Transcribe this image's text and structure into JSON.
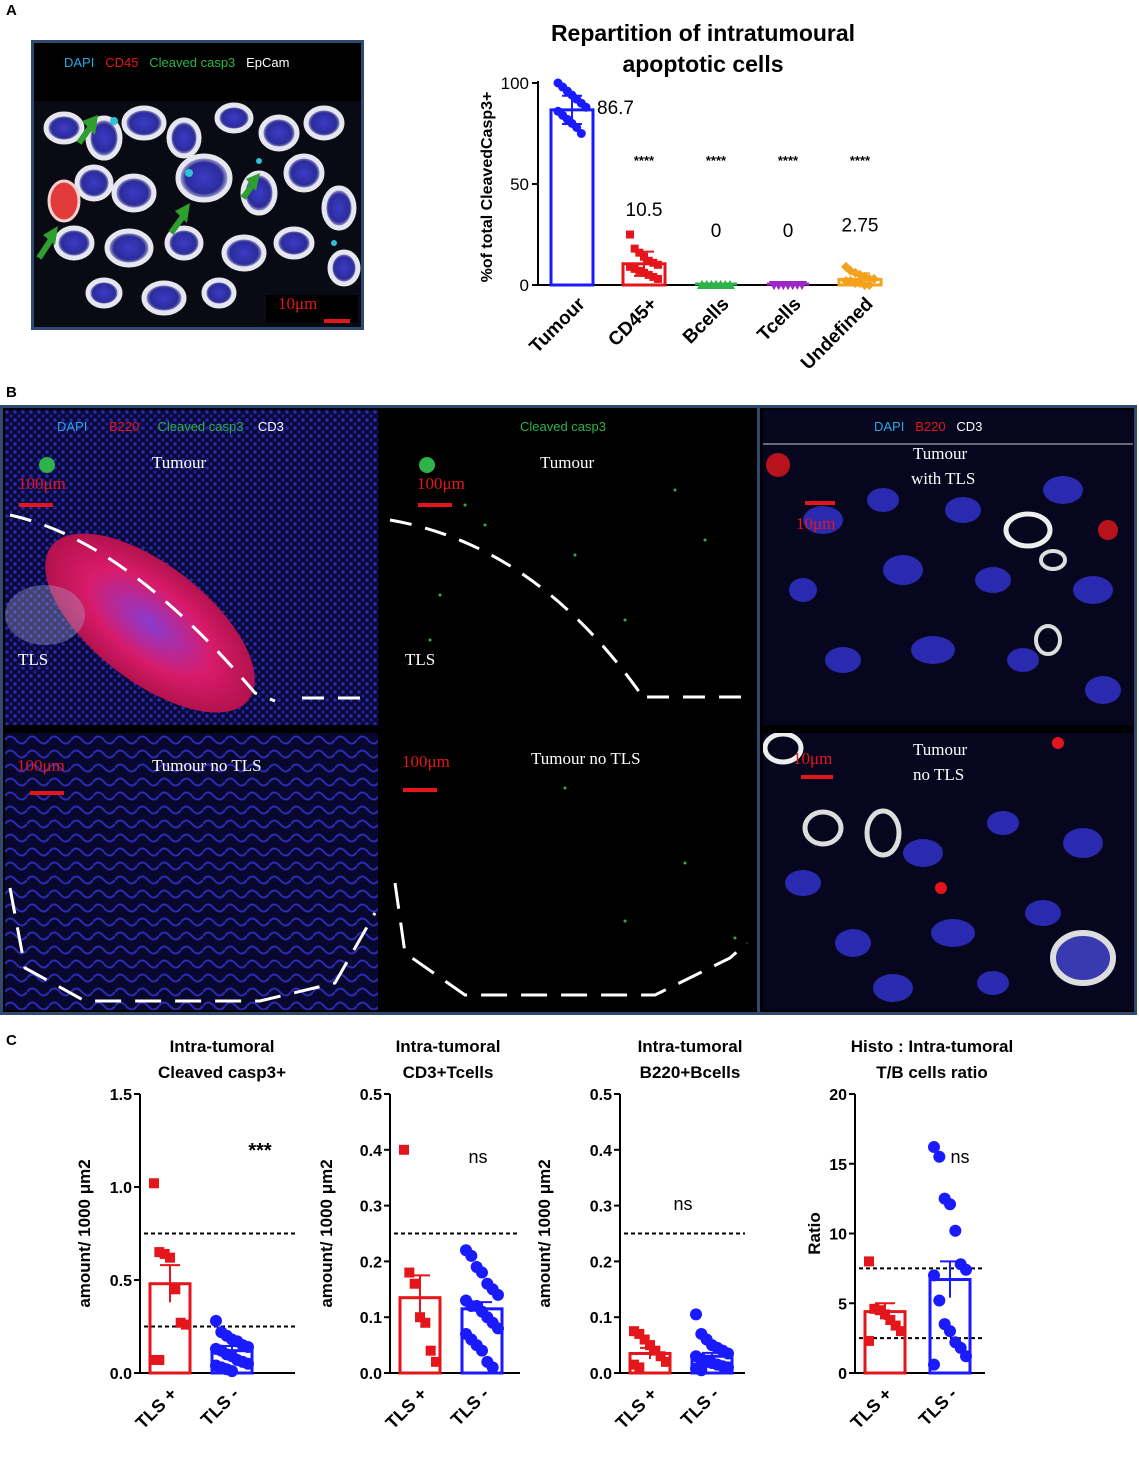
{
  "panel_letters": {
    "a": "A",
    "b": "B",
    "c": "C"
  },
  "colors": {
    "dapi": "#29a9e0",
    "red": "#e5161b",
    "green": "#2db34a",
    "white": "#ffffff",
    "blue": "#1a1aff",
    "purple": "#9b27c7",
    "orange": "#f4a11d",
    "arrow": "#2e9e2e"
  },
  "panel_a": {
    "image": {
      "legend": {
        "dapi": "DAPI",
        "cd45": "CD45",
        "casp3": "Cleaved casp3",
        "epcam": "EpCam"
      },
      "scale": "10μm"
    }
  },
  "panel_b": {
    "img1": {
      "legend": {
        "dapi": "DAPI",
        "b220": "B220",
        "casp3": "Cleaved casp3",
        "cd3": "CD3"
      },
      "scale": "100μm",
      "labels": {
        "top": "Tumour",
        "tls": "TLS"
      }
    },
    "img2": {
      "legend": "Cleaved casp3",
      "scale": "100μm",
      "labels": {
        "top": "Tumour",
        "tls": "TLS"
      }
    },
    "img3": {
      "legend": {
        "dapi": "DAPI",
        "b220": "B220",
        "cd3": "CD3"
      },
      "scale": "10μm",
      "labels": {
        "line1": "Tumour",
        "line2": "with TLS"
      }
    },
    "img4": {
      "scale": "100μm",
      "label": "Tumour no TLS"
    },
    "img5": {
      "scale": "100μm",
      "label": "Tumour no TLS"
    },
    "img6": {
      "scale": "10μm",
      "labels": {
        "line1": "Tumour",
        "line2": "no TLS"
      }
    }
  },
  "chart_data": [
    {
      "id": "A",
      "type": "bar",
      "title": [
        "Repartition of intratumoural",
        "apoptotic cells"
      ],
      "ylabel": "%of total CleavedCasp3+",
      "ylim": [
        0,
        100
      ],
      "yticks": [
        0,
        50,
        100
      ],
      "categories": [
        "Tumour",
        "CD45+",
        "Bcells",
        "Tcells",
        "Undefined"
      ],
      "values": [
        86.7,
        10.5,
        0,
        0,
        2.75
      ],
      "value_labels": [
        "86.7",
        "10.5",
        "0",
        "0",
        "2.75"
      ],
      "significance": [
        "",
        "****",
        "****",
        "****",
        "****"
      ],
      "colors": [
        "#1a1aff",
        "#e5161b",
        "#2db34a",
        "#9b27c7",
        "#f4a11d"
      ],
      "points": [
        [
          100,
          98,
          96,
          94,
          92,
          90,
          88,
          86,
          84,
          82,
          80,
          78,
          75
        ],
        [
          25,
          18,
          16,
          14,
          12,
          11,
          10,
          9,
          8,
          7,
          6,
          5,
          4,
          3
        ],
        [
          0,
          0,
          0,
          0,
          0,
          0,
          0,
          0,
          0,
          0,
          0,
          0
        ],
        [
          0,
          0,
          0,
          0,
          0,
          0,
          0,
          0,
          0,
          0,
          0,
          0
        ],
        [
          9,
          7,
          6,
          5,
          4,
          3,
          3,
          2,
          2,
          1,
          1,
          0,
          0
        ]
      ],
      "errors": [
        7,
        6,
        0,
        0,
        3
      ]
    },
    {
      "id": "C1",
      "type": "bar",
      "title": [
        "Intra-tumoral",
        "Cleaved casp3+"
      ],
      "ylabel": "amount/ 1000 μm2",
      "ylim": [
        0,
        1.5
      ],
      "yticks": [
        "0.0",
        "0.5",
        "1.0",
        "1.5"
      ],
      "categories": [
        "TLS +",
        "TLS -"
      ],
      "values": [
        0.48,
        0.12
      ],
      "errors": [
        0.1,
        0.025
      ],
      "significance": "***",
      "thresholds": [
        0.75,
        0.25
      ],
      "points": [
        [
          1.02,
          0.65,
          0.64,
          0.62,
          0.45,
          0.27,
          0.26,
          0.07,
          0.07
        ],
        [
          0.28,
          0.22,
          0.2,
          0.18,
          0.17,
          0.15,
          0.14,
          0.13,
          0.12,
          0.1,
          0.09,
          0.07,
          0.06,
          0.05,
          0.04,
          0.03,
          0.02,
          0.01
        ]
      ],
      "markers": [
        "square",
        "circle"
      ],
      "colors": [
        "#e5161b",
        "#1a1aff"
      ]
    },
    {
      "id": "C2",
      "type": "bar",
      "title": [
        "Intra-tumoral",
        "CD3+Tcells"
      ],
      "ylabel": "amount/ 1000 μm2",
      "ylim": [
        0,
        0.5
      ],
      "yticks": [
        "0.0",
        "0.1",
        "0.2",
        "0.3",
        "0.4",
        "0.5"
      ],
      "categories": [
        "TLS +",
        "TLS -"
      ],
      "values": [
        0.135,
        0.115
      ],
      "errors": [
        0.04,
        0.012
      ],
      "significance": "ns",
      "thresholds": [
        0.25
      ],
      "points": [
        [
          0.4,
          0.18,
          0.16,
          0.1,
          0.09,
          0.04,
          0.02
        ],
        [
          0.22,
          0.21,
          0.19,
          0.18,
          0.16,
          0.15,
          0.14,
          0.13,
          0.12,
          0.12,
          0.11,
          0.1,
          0.09,
          0.08,
          0.07,
          0.06,
          0.05,
          0.04,
          0.02,
          0.01
        ]
      ],
      "markers": [
        "square",
        "circle"
      ],
      "colors": [
        "#e5161b",
        "#1a1aff"
      ]
    },
    {
      "id": "C3",
      "type": "bar",
      "title": [
        "Intra-tumoral",
        "B220+Bcells"
      ],
      "ylabel": "amount/ 1000 μm2",
      "ylim": [
        0,
        0.5
      ],
      "yticks": [
        "0.0",
        "0.1",
        "0.2",
        "0.3",
        "0.4",
        "0.5"
      ],
      "categories": [
        "TLS +",
        "TLS -"
      ],
      "values": [
        0.035,
        0.03
      ],
      "errors": [
        0.01,
        0.006
      ],
      "significance": "ns",
      "thresholds": [
        0.25
      ],
      "points": [
        [
          0.075,
          0.07,
          0.06,
          0.05,
          0.04,
          0.03,
          0.02,
          0.015,
          0.01
        ],
        [
          0.105,
          0.07,
          0.06,
          0.05,
          0.045,
          0.04,
          0.035,
          0.03,
          0.025,
          0.02,
          0.018,
          0.015,
          0.012,
          0.01,
          0.008,
          0.005
        ]
      ],
      "markers": [
        "square",
        "circle"
      ],
      "colors": [
        "#e5161b",
        "#1a1aff"
      ]
    },
    {
      "id": "C4",
      "type": "bar",
      "title": [
        "Histo : Intra-tumoral",
        "T/B cells ratio"
      ],
      "ylabel": "Ratio",
      "ylim": [
        0,
        20
      ],
      "yticks": [
        "0",
        "5",
        "10",
        "15",
        "20"
      ],
      "categories": [
        "TLS +",
        "TLS -"
      ],
      "values": [
        4.4,
        6.7
      ],
      "errors": [
        0.6,
        1.3
      ],
      "significance": "ns",
      "thresholds": [
        7.5,
        2.5
      ],
      "points": [
        [
          8.0,
          4.6,
          4.5,
          4.2,
          3.8,
          3.4,
          3.0,
          2.3
        ],
        [
          16.2,
          15.5,
          12.5,
          12.1,
          10.2,
          7.8,
          7.4,
          7.0,
          5.2,
          3.5,
          3.0,
          2.2,
          1.8,
          1.2,
          0.6
        ]
      ],
      "markers": [
        "square",
        "circle"
      ],
      "colors": [
        "#e5161b",
        "#1a1aff"
      ]
    }
  ]
}
